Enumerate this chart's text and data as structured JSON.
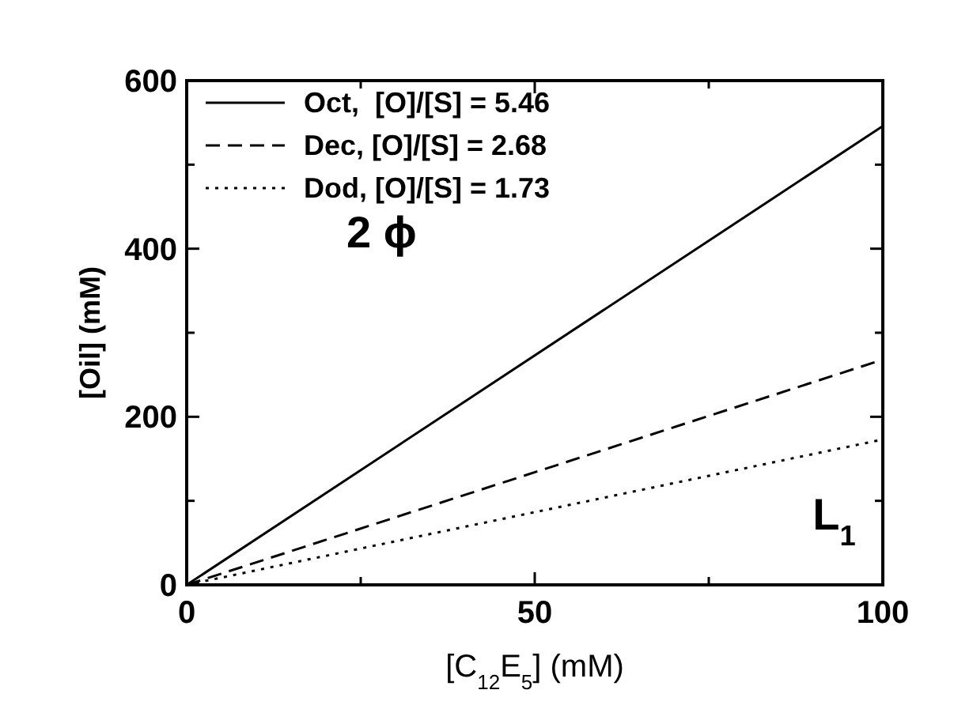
{
  "chart_data": {
    "type": "line",
    "xlabel": "[C$_{12}$E$_{5}$] (mM)",
    "ylabel": "[Oil] (mM)",
    "x": [
      0,
      100
    ],
    "series": [
      {
        "name": "Oct,  [O]/[S] = 5.46",
        "color": "#000000",
        "line_style": "solid",
        "values": [
          0,
          546
        ]
      },
      {
        "name": "Dec, [O]/[S] = 2.68",
        "color": "#000000",
        "line_style": "dashed",
        "values": [
          0,
          268
        ]
      },
      {
        "name": "Dod, [O]/[S] = 1.73",
        "color": "#000000",
        "line_style": "dotted",
        "values": [
          0,
          173
        ]
      }
    ],
    "xlim": [
      0,
      100
    ],
    "xticks": [
      0,
      {
        "value": 25,
        "label": null
      },
      50,
      {
        "value": 75,
        "label": null
      },
      100
    ],
    "ylim": [
      0,
      600
    ],
    "yticks": [
      0,
      {
        "value": 100,
        "label": null
      },
      200,
      {
        "value": 300,
        "label": null
      },
      400,
      {
        "value": 500,
        "label": null
      },
      600
    ],
    "grid": false,
    "legend": "top left",
    "annotations": [
      "2 ϕ",
      "L$_{1}$"
    ]
  }
}
